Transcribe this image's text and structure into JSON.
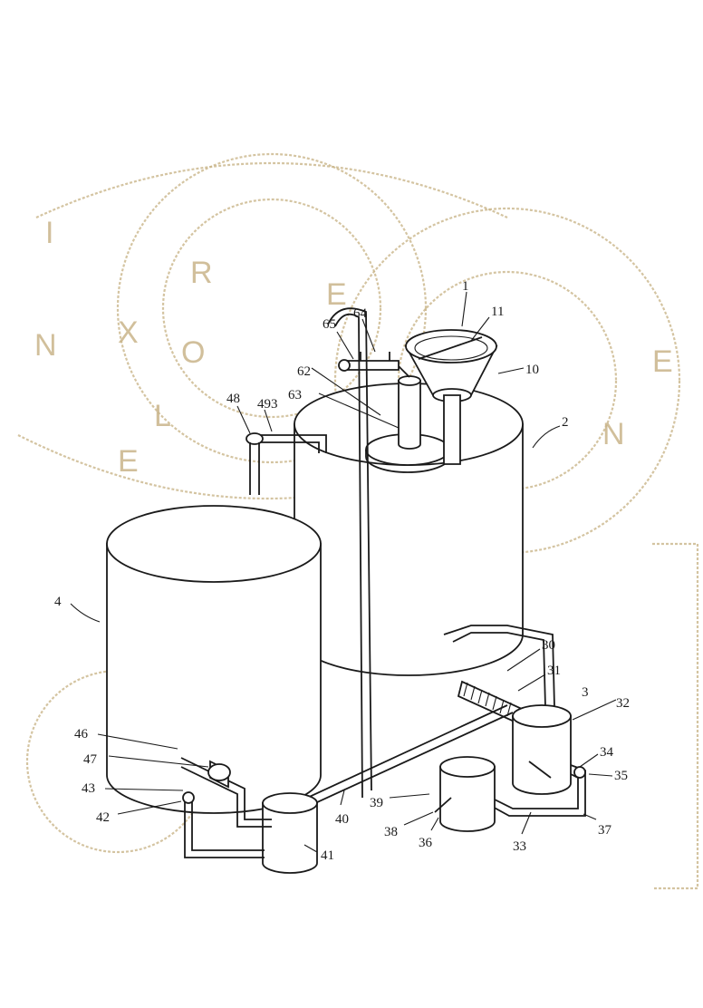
{
  "figure": {
    "watermark_letters": [
      "I",
      "N",
      "X",
      "R",
      "O",
      "L",
      "E",
      "E",
      "N",
      "E"
    ],
    "labels": [
      {
        "id": "l1",
        "text": "1"
      },
      {
        "id": "l11",
        "text": "11"
      },
      {
        "id": "l10",
        "text": "10"
      },
      {
        "id": "l2",
        "text": "2"
      },
      {
        "id": "l30",
        "text": "30"
      },
      {
        "id": "l31",
        "text": "31"
      },
      {
        "id": "l3",
        "text": "3"
      },
      {
        "id": "l32",
        "text": "32"
      },
      {
        "id": "l34",
        "text": "34"
      },
      {
        "id": "l35",
        "text": "35"
      },
      {
        "id": "l37",
        "text": "37"
      },
      {
        "id": "l33",
        "text": "33"
      },
      {
        "id": "l36",
        "text": "36"
      },
      {
        "id": "l38",
        "text": "38"
      },
      {
        "id": "l39",
        "text": "39"
      },
      {
        "id": "l40",
        "text": "40"
      },
      {
        "id": "l41",
        "text": "41"
      },
      {
        "id": "l42",
        "text": "42"
      },
      {
        "id": "l43",
        "text": "43"
      },
      {
        "id": "l47",
        "text": "47"
      },
      {
        "id": "l46",
        "text": "46"
      },
      {
        "id": "l4",
        "text": "4"
      },
      {
        "id": "l48",
        "text": "48"
      },
      {
        "id": "l493",
        "text": "493"
      },
      {
        "id": "l62",
        "text": "62"
      },
      {
        "id": "l63",
        "text": "63"
      },
      {
        "id": "l65",
        "text": "65"
      },
      {
        "id": "l64",
        "text": "64"
      }
    ]
  }
}
